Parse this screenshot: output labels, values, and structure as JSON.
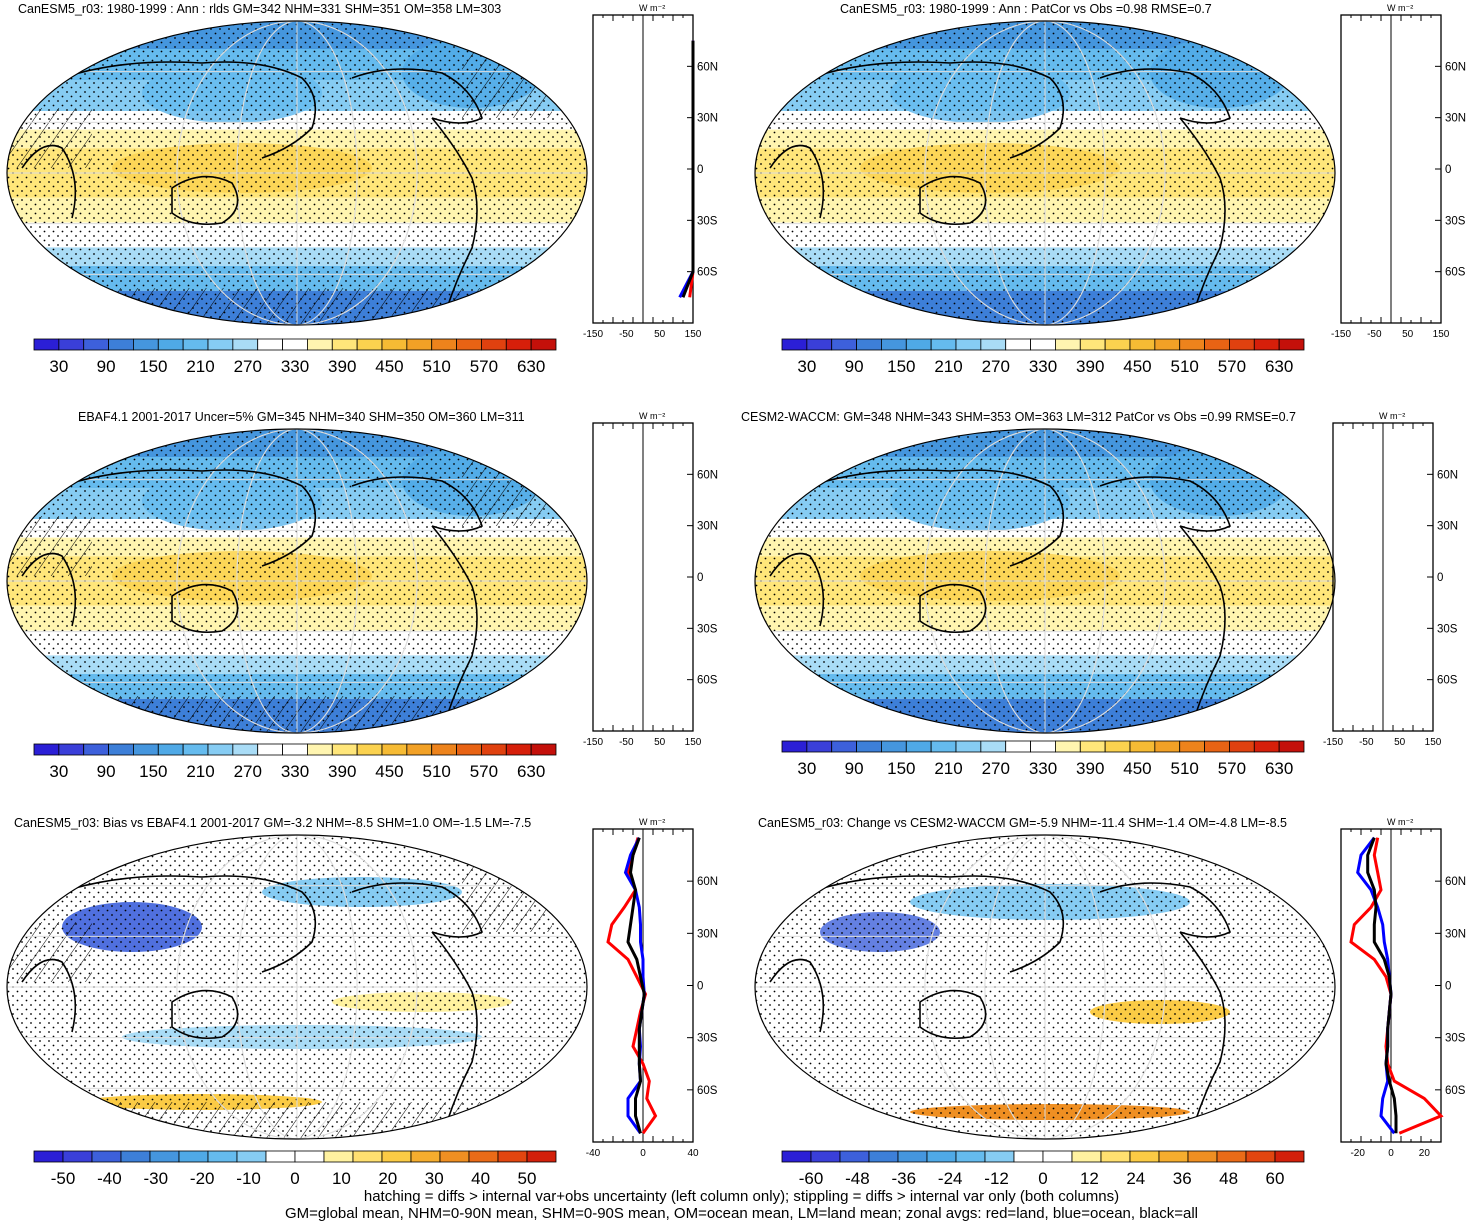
{
  "colors": {
    "abs_palette": [
      "#2b1fd6",
      "#3a3fd9",
      "#3d60db",
      "#3d7fd8",
      "#4596de",
      "#4fa9e6",
      "#65bbee",
      "#86ccf3",
      "#a9dcf6",
      "#ffffff",
      "#ffffff",
      "#fff5b0",
      "#ffe67a",
      "#fbd24f",
      "#f6bb34",
      "#f2a126",
      "#ed831c",
      "#e86314",
      "#e0410f",
      "#d61f0a",
      "#c4100a"
    ],
    "diff_palette": [
      "#2b1fd6",
      "#3a3fd9",
      "#3d60db",
      "#3d7fd8",
      "#4596de",
      "#4fa9e6",
      "#65bbee",
      "#86ccf3",
      "#ffffff",
      "#ffffff",
      "#fff2a0",
      "#ffe070",
      "#fbcb45",
      "#f5ad2e",
      "#ef8f22",
      "#ea6b17",
      "#e2460f",
      "#d3200a"
    ],
    "land_line": "#ff0000",
    "ocean_line": "#0000ff",
    "all_line": "#000000"
  },
  "panels": [
    {
      "id": "model-clim",
      "title": "CanESM5_r03: 1980-1999 : Ann : rlds GM=342 NHM=331 SHM=351 OM=358 LM=303",
      "colorbar_labels": [
        "30",
        "90",
        "150",
        "210",
        "270",
        "330",
        "390",
        "450",
        "510",
        "570",
        "630"
      ],
      "zonal_xticks": [
        "-150",
        "-50",
        "50",
        "150"
      ],
      "zonal_unit": "W m⁻²",
      "lat_labels": [
        "60N",
        "30N",
        "0",
        "30S",
        "60S"
      ],
      "hatched": true
    },
    {
      "id": "model-patcor",
      "title": "CanESM5_r03: 1980-1999 : Ann : PatCor vs Obs =0.98 RMSE=0.7",
      "colorbar_labels": [
        "30",
        "90",
        "150",
        "210",
        "270",
        "330",
        "390",
        "450",
        "510",
        "570",
        "630"
      ],
      "zonal_xticks": [
        "-150",
        "-50",
        "50",
        "150"
      ],
      "zonal_unit": "W m⁻²",
      "lat_labels": [
        "60N",
        "30N",
        "0",
        "30S",
        "60S"
      ],
      "hatched": false
    },
    {
      "id": "obs-clim",
      "title": "EBAF4.1 2001-2017 Uncer=5% GM=345 NHM=340 SHM=350 OM=360 LM=311",
      "colorbar_labels": [
        "30",
        "90",
        "150",
        "210",
        "270",
        "330",
        "390",
        "450",
        "510",
        "570",
        "630"
      ],
      "zonal_xticks": [
        "-150",
        "-50",
        "50",
        "150"
      ],
      "zonal_unit": "W m⁻²",
      "lat_labels": [
        "60N",
        "30N",
        "0",
        "30S",
        "60S"
      ],
      "hatched": true
    },
    {
      "id": "ref-model-clim",
      "title": "CESM2-WACCM: GM=348 NHM=343 SHM=353 OM=363 LM=312 PatCor vs Obs =0.99 RMSE=0.7",
      "colorbar_labels": [
        "30",
        "90",
        "150",
        "210",
        "270",
        "330",
        "390",
        "450",
        "510",
        "570",
        "630"
      ],
      "zonal_xticks": [
        "-150",
        "-50",
        "50",
        "150"
      ],
      "zonal_unit": "W m⁻²",
      "lat_labels": [
        "60N",
        "30N",
        "0",
        "30S",
        "60S"
      ],
      "hatched": false
    },
    {
      "id": "bias",
      "title": "CanESM5_r03: Bias vs EBAF4.1 2001-2017 GM=-3.2 NHM=-8.5 SHM=1.0 OM=-1.5 LM=-7.5",
      "colorbar_labels": [
        "-50",
        "-40",
        "-30",
        "-20",
        "-10",
        "0",
        "10",
        "20",
        "30",
        "40",
        "50"
      ],
      "zonal_xticks": [
        "-40",
        "0",
        "40"
      ],
      "zonal_unit": "W m⁻²",
      "lat_labels": [
        "60N",
        "30N",
        "0",
        "30S",
        "60S"
      ],
      "hatched": true
    },
    {
      "id": "change",
      "title": "CanESM5_r03: Change vs CESM2-WACCM GM=-5.9 NHM=-11.4 SHM=-1.4 OM=-4.8 LM=-8.5",
      "colorbar_labels": [
        "-60",
        "-48",
        "-36",
        "-24",
        "-12",
        "0",
        "12",
        "24",
        "36",
        "48",
        "60"
      ],
      "zonal_xticks": [
        "-20",
        "0",
        "20"
      ],
      "zonal_unit": "W m⁻²",
      "lat_labels": [
        "60N",
        "30N",
        "0",
        "30S",
        "60S"
      ],
      "hatched": false
    }
  ],
  "footer": {
    "line1": "hatching = diffs > internal var+obs uncertainty (left column only); stippling = diffs > internal var only (both columns)",
    "line2": "GM=global mean, NHM=0-90N mean, SHM=0-90S mean, OM=ocean mean, LM=land mean; zonal avgs: red=land, blue=ocean, black=all"
  },
  "chart_data": [
    {
      "type": "heatmap",
      "panel": "CanESM5_r03 1980-1999 Ann rlds",
      "title": "CanESM5_r03: 1980-1999 : Ann : rlds GM=342 NHM=331 SHM=351 OM=358 LM=303",
      "color_scale": [
        30,
        630
      ],
      "color_step": 30,
      "zonal_mean_xlim": [
        -150,
        150
      ],
      "zonal_mean": {
        "lat": [
          75,
          60,
          30,
          0,
          -30,
          -60,
          -75
        ],
        "all": [
          150,
          150,
          150,
          150,
          150,
          150,
          120
        ],
        "land": [
          150,
          150,
          150,
          150,
          150,
          150,
          140
        ],
        "ocean": [
          150,
          150,
          150,
          150,
          150,
          150,
          110
        ]
      }
    },
    {
      "type": "heatmap",
      "panel": "CanESM5_r03 PatCor",
      "title": "CanESM5_r03: 1980-1999 : Ann : PatCor vs Obs =0.98 RMSE=0.7",
      "color_scale": [
        30,
        630
      ],
      "color_step": 30,
      "patcor": 0.98,
      "rmse": 0.7,
      "zonal_mean_xlim": [
        -150,
        150
      ]
    },
    {
      "type": "heatmap",
      "panel": "EBAF4.1 2001-2017",
      "title": "EBAF4.1 2001-2017 Uncer=5% GM=345 NHM=340 SHM=350 OM=360 LM=311",
      "color_scale": [
        30,
        630
      ],
      "color_step": 30,
      "zonal_mean_xlim": [
        -150,
        150
      ]
    },
    {
      "type": "heatmap",
      "panel": "CESM2-WACCM",
      "title": "CESM2-WACCM: GM=348 NHM=343 SHM=353 OM=363 LM=312 PatCor vs Obs =0.99 RMSE=0.7",
      "color_scale": [
        30,
        630
      ],
      "color_step": 30,
      "patcor": 0.99,
      "rmse": 0.7,
      "zonal_mean_xlim": [
        -150,
        150
      ]
    },
    {
      "type": "heatmap",
      "panel": "Bias vs EBAF4.1",
      "title": "CanESM5_r03: Bias vs EBAF4.1 2001-2017 GM=-3.2 NHM=-8.5 SHM=1.0 OM=-1.5 LM=-7.5",
      "color_scale": [
        -50,
        50
      ],
      "color_step": 5,
      "zonal_mean_xlim": [
        -40,
        40
      ],
      "zonal_mean": {
        "lat": [
          85,
          75,
          65,
          55,
          45,
          35,
          25,
          15,
          5,
          -5,
          -15,
          -25,
          -35,
          -45,
          -55,
          -65,
          -75,
          -85
        ],
        "land": [
          -4,
          -8,
          -12,
          -6,
          -15,
          -25,
          -28,
          -12,
          -5,
          2,
          -2,
          -5,
          -8,
          0,
          5,
          3,
          10,
          0
        ],
        "ocean": [
          -3,
          -10,
          -14,
          -6,
          -3,
          -2,
          -2,
          0,
          0,
          1,
          -1,
          -3,
          -2,
          -3,
          -2,
          -12,
          -12,
          -2
        ],
        "all": [
          -3,
          -8,
          -10,
          -6,
          -8,
          -10,
          -12,
          -5,
          -2,
          1,
          -1,
          -3,
          -3,
          -3,
          -2,
          -6,
          -6,
          -2
        ]
      }
    },
    {
      "type": "heatmap",
      "panel": "Change vs CESM2-WACCM",
      "title": "CanESM5_r03: Change vs CESM2-WACCM GM=-5.9 NHM=-11.4 SHM=-1.4 OM=-4.8 LM=-8.5",
      "color_scale": [
        -60,
        60
      ],
      "color_step": 6,
      "zonal_mean_xlim": [
        -30,
        30
      ],
      "zonal_mean": {
        "lat": [
          85,
          75,
          65,
          55,
          45,
          35,
          25,
          15,
          5,
          -5,
          -15,
          -25,
          -35,
          -45,
          -55,
          -65,
          -75,
          -85
        ],
        "land": [
          -8,
          -10,
          -8,
          -6,
          -12,
          -22,
          -24,
          -10,
          -3,
          0,
          -1,
          -2,
          -3,
          -2,
          2,
          20,
          30,
          5
        ],
        "ocean": [
          -10,
          -18,
          -20,
          -12,
          -8,
          -5,
          -4,
          -2,
          -1,
          0,
          -1,
          -2,
          -2,
          -3,
          -2,
          -5,
          -6,
          2
        ],
        "all": [
          -10,
          -14,
          -14,
          -10,
          -9,
          -10,
          -10,
          -4,
          -1,
          0,
          -1,
          -2,
          -2,
          -3,
          -1,
          2,
          3,
          3
        ]
      }
    }
  ]
}
